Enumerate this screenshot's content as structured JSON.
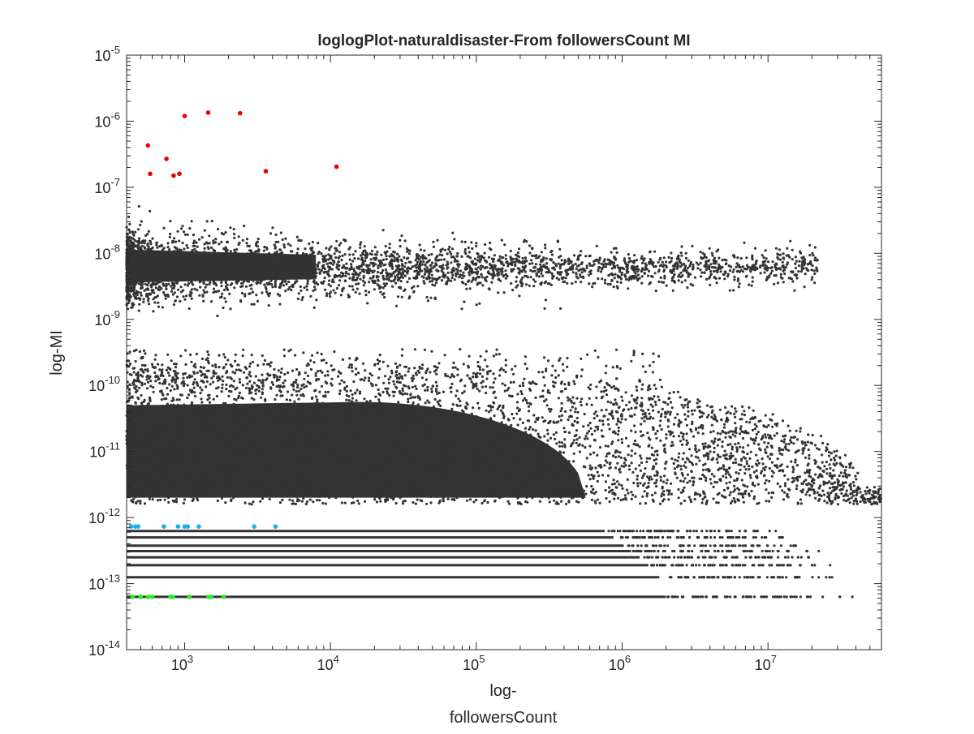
{
  "chart_data": {
    "type": "scatter",
    "title": "loglogPlot-naturaldisaster-From followersCount MI",
    "xlabel_lines": [
      "log-",
      "followersCount"
    ],
    "ylabel": "log-MI",
    "x_scale": "log",
    "y_scale": "log",
    "xlim": [
      400,
      60000000
    ],
    "ylim": [
      1e-14,
      1e-05
    ],
    "x_ticks": [
      {
        "base": "10",
        "exp": "3",
        "value": 1000
      },
      {
        "base": "10",
        "exp": "4",
        "value": 10000
      },
      {
        "base": "10",
        "exp": "5",
        "value": 100000
      },
      {
        "base": "10",
        "exp": "6",
        "value": 1000000
      },
      {
        "base": "10",
        "exp": "7",
        "value": 10000000
      }
    ],
    "y_ticks": [
      {
        "base": "10",
        "exp": "-14",
        "value": 1e-14
      },
      {
        "base": "10",
        "exp": "-13",
        "value": 1e-13
      },
      {
        "base": "10",
        "exp": "-12",
        "value": 1e-12
      },
      {
        "base": "10",
        "exp": "-11",
        "value": 1e-11
      },
      {
        "base": "10",
        "exp": "-10",
        "value": 1e-10
      },
      {
        "base": "10",
        "exp": "-9",
        "value": 1e-09
      },
      {
        "base": "10",
        "exp": "-8",
        "value": 1e-08
      },
      {
        "base": "10",
        "exp": "-7",
        "value": 1e-07
      },
      {
        "base": "10",
        "exp": "-6",
        "value": 1e-06
      },
      {
        "base": "10",
        "exp": "-5",
        "value": 1e-05
      }
    ],
    "grid": false,
    "legend": "none",
    "colors": {
      "bulk": "#333333",
      "high": "#ee0000",
      "mid": "#1ab0ee",
      "low": "#22ee22",
      "axis": "#262626"
    },
    "series": [
      {
        "role": "high",
        "points": [
          [
            560,
            4.3e-07
          ],
          [
            580,
            1.6e-07
          ],
          [
            750,
            2.7e-07
          ],
          [
            840,
            1.5e-07
          ],
          [
            920,
            1.6e-07
          ],
          [
            1000,
            1.2e-06
          ],
          [
            1450,
            1.35e-06
          ],
          [
            2400,
            1.32e-06
          ],
          [
            3600,
            1.75e-07
          ],
          [
            11000,
            2.05e-07
          ]
        ]
      },
      {
        "role": "mid",
        "points": [
          [
            430,
            7.3e-13
          ],
          [
            460,
            7.3e-13
          ],
          [
            480,
            7.3e-13
          ],
          [
            720,
            7.3e-13
          ],
          [
            900,
            7.3e-13
          ],
          [
            1000,
            7.3e-13
          ],
          [
            1050,
            7.3e-13
          ],
          [
            1250,
            7.3e-13
          ],
          [
            3000,
            7.3e-13
          ],
          [
            4200,
            7.3e-13
          ]
        ]
      },
      {
        "role": "low",
        "points": [
          [
            440,
            6.3e-14
          ],
          [
            500,
            6.3e-14
          ],
          [
            560,
            6.3e-14
          ],
          [
            600,
            6.3e-14
          ],
          [
            800,
            6.3e-14
          ],
          [
            830,
            6.3e-14
          ],
          [
            1080,
            6.3e-14
          ],
          [
            1460,
            6.3e-14
          ],
          [
            1520,
            6.3e-14
          ],
          [
            1850,
            6.3e-14
          ]
        ]
      }
    ],
    "bulk_clusters": {
      "upper_band": {
        "y_center": 6e-09,
        "x_range": [
          400,
          22000000
        ]
      },
      "lower_cloud": {
        "y_range": [
          2e-12,
          1e-10
        ],
        "x_range": [
          400,
          60000000
        ]
      },
      "discrete_levels": [
        6.3e-14,
        1.25e-13,
        1.9e-13,
        2.5e-13,
        3.1e-13,
        3.75e-13,
        5e-13,
        6.25e-13
      ]
    }
  }
}
